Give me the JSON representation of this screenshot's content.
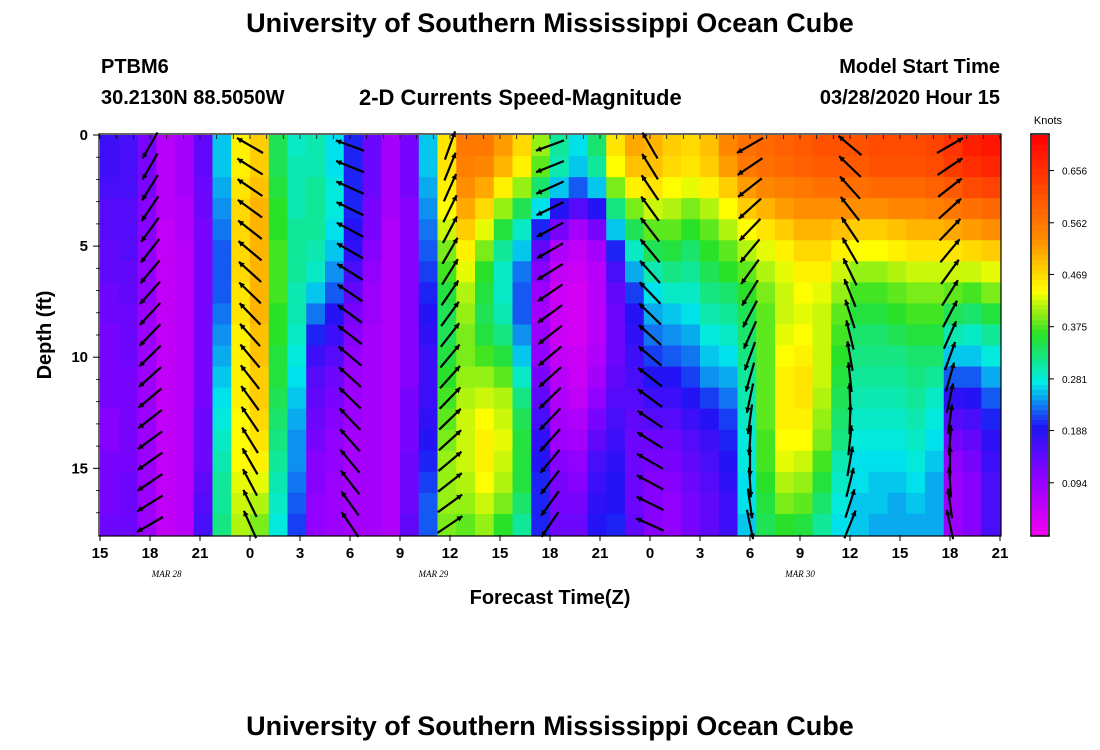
{
  "header": {
    "title": "University of Southern Mississippi Ocean Cube",
    "station": "PTBM6",
    "coords": "30.2130N 88.5050W",
    "plot_title": "2-D Currents Speed-Magnitude",
    "model_start_label": "Model Start Time",
    "model_start_value": "03/28/2020 Hour 15"
  },
  "footer": {
    "title": "University of Southern Mississippi Ocean Cube"
  },
  "chart_data": {
    "type": "heatmap",
    "title": "2-D Currents Speed-Magnitude",
    "xlabel": "Forecast Time(Z)",
    "ylabel": "Depth (ft)",
    "x_ticks": [
      "15",
      "18",
      "21",
      "0",
      "3",
      "6",
      "9",
      "12",
      "15",
      "18",
      "21",
      "0",
      "3",
      "6",
      "9",
      "12",
      "15",
      "18",
      "21"
    ],
    "date_labels": [
      {
        "label": "MAR  28",
        "hour_offset": 4
      },
      {
        "label": "MAR  29",
        "hour_offset": 20
      },
      {
        "label": "MAR  30",
        "hour_offset": 42
      }
    ],
    "y_ticks": [
      0,
      5,
      10,
      15
    ],
    "ylim": [
      0,
      18
    ],
    "xlim_hours": [
      0,
      54
    ],
    "colorbar": {
      "unit": "Knots",
      "ticks": [
        "0.656",
        "0.562",
        "0.469",
        "0.375",
        "0.281",
        "0.188",
        "0.094"
      ],
      "range": [
        0,
        0.72
      ]
    },
    "columns_speed_knots": [
      [
        0.17,
        0.17,
        0.16,
        0.15,
        0.15,
        0.14,
        0.14,
        0.13,
        0.13,
        0.12,
        0.12,
        0.12,
        0.12,
        0.11,
        0.11,
        0.12,
        0.12,
        0.12,
        0.13
      ],
      [
        0.16,
        0.16,
        0.16,
        0.15,
        0.15,
        0.15,
        0.14,
        0.14,
        0.13,
        0.13,
        0.13,
        0.12,
        0.12,
        0.12,
        0.12,
        0.12,
        0.13,
        0.13,
        0.13
      ],
      [
        0.12,
        0.12,
        0.12,
        0.11,
        0.11,
        0.1,
        0.1,
        0.1,
        0.09,
        0.09,
        0.09,
        0.09,
        0.09,
        0.09,
        0.09,
        0.09,
        0.09,
        0.09,
        0.09
      ],
      [
        0.06,
        0.06,
        0.06,
        0.06,
        0.05,
        0.05,
        0.05,
        0.05,
        0.05,
        0.05,
        0.05,
        0.05,
        0.05,
        0.05,
        0.05,
        0.05,
        0.05,
        0.05,
        0.05
      ],
      [
        0.08,
        0.08,
        0.08,
        0.07,
        0.07,
        0.06,
        0.06,
        0.06,
        0.06,
        0.06,
        0.06,
        0.06,
        0.06,
        0.06,
        0.06,
        0.06,
        0.06,
        0.06,
        0.06
      ],
      [
        0.14,
        0.14,
        0.13,
        0.13,
        0.12,
        0.12,
        0.12,
        0.12,
        0.12,
        0.12,
        0.12,
        0.12,
        0.12,
        0.13,
        0.13,
        0.13,
        0.14,
        0.15,
        0.16
      ],
      [
        0.26,
        0.26,
        0.25,
        0.24,
        0.23,
        0.22,
        0.22,
        0.22,
        0.23,
        0.24,
        0.25,
        0.26,
        0.27,
        0.28,
        0.29,
        0.3,
        0.31,
        0.31,
        0.32
      ],
      [
        0.45,
        0.45,
        0.46,
        0.47,
        0.47,
        0.47,
        0.47,
        0.46,
        0.46,
        0.45,
        0.45,
        0.45,
        0.45,
        0.44,
        0.44,
        0.44,
        0.43,
        0.42,
        0.41
      ],
      [
        0.48,
        0.48,
        0.49,
        0.5,
        0.5,
        0.5,
        0.5,
        0.5,
        0.5,
        0.49,
        0.49,
        0.48,
        0.48,
        0.47,
        0.46,
        0.45,
        0.43,
        0.41,
        0.39
      ],
      [
        0.34,
        0.34,
        0.35,
        0.36,
        0.36,
        0.37,
        0.37,
        0.37,
        0.36,
        0.36,
        0.35,
        0.35,
        0.34,
        0.33,
        0.32,
        0.31,
        0.3,
        0.29,
        0.28
      ],
      [
        0.29,
        0.3,
        0.3,
        0.3,
        0.31,
        0.31,
        0.31,
        0.3,
        0.3,
        0.29,
        0.28,
        0.27,
        0.26,
        0.25,
        0.24,
        0.24,
        0.23,
        0.22,
        0.21
      ],
      [
        0.3,
        0.3,
        0.31,
        0.31,
        0.31,
        0.3,
        0.29,
        0.26,
        0.23,
        0.2,
        0.17,
        0.15,
        0.14,
        0.13,
        0.12,
        0.11,
        0.11,
        0.1,
        0.1
      ],
      [
        0.27,
        0.27,
        0.28,
        0.28,
        0.27,
        0.26,
        0.24,
        0.22,
        0.19,
        0.17,
        0.15,
        0.13,
        0.12,
        0.11,
        0.1,
        0.1,
        0.09,
        0.09,
        0.09
      ],
      [
        0.2,
        0.2,
        0.2,
        0.2,
        0.19,
        0.18,
        0.16,
        0.14,
        0.12,
        0.11,
        0.1,
        0.09,
        0.09,
        0.09,
        0.08,
        0.08,
        0.08,
        0.08,
        0.08
      ],
      [
        0.13,
        0.13,
        0.13,
        0.12,
        0.12,
        0.11,
        0.1,
        0.09,
        0.09,
        0.08,
        0.08,
        0.08,
        0.08,
        0.08,
        0.08,
        0.08,
        0.08,
        0.08,
        0.08
      ],
      [
        0.08,
        0.08,
        0.08,
        0.08,
        0.07,
        0.07,
        0.07,
        0.07,
        0.07,
        0.07,
        0.07,
        0.07,
        0.07,
        0.07,
        0.07,
        0.07,
        0.07,
        0.07,
        0.07
      ],
      [
        0.12,
        0.12,
        0.12,
        0.11,
        0.11,
        0.11,
        0.11,
        0.11,
        0.11,
        0.11,
        0.11,
        0.11,
        0.12,
        0.12,
        0.12,
        0.13,
        0.13,
        0.13,
        0.14
      ],
      [
        0.26,
        0.26,
        0.25,
        0.24,
        0.23,
        0.22,
        0.21,
        0.2,
        0.19,
        0.18,
        0.17,
        0.17,
        0.17,
        0.18,
        0.19,
        0.2,
        0.21,
        0.22,
        0.22
      ],
      [
        0.46,
        0.46,
        0.45,
        0.44,
        0.42,
        0.39,
        0.37,
        0.35,
        0.34,
        0.34,
        0.35,
        0.36,
        0.37,
        0.38,
        0.39,
        0.4,
        0.4,
        0.4,
        0.39
      ],
      [
        0.56,
        0.55,
        0.53,
        0.51,
        0.48,
        0.45,
        0.43,
        0.41,
        0.4,
        0.39,
        0.39,
        0.4,
        0.41,
        0.42,
        0.42,
        0.42,
        0.41,
        0.4,
        0.38
      ],
      [
        0.56,
        0.54,
        0.51,
        0.47,
        0.43,
        0.39,
        0.36,
        0.35,
        0.34,
        0.35,
        0.37,
        0.4,
        0.42,
        0.44,
        0.45,
        0.45,
        0.44,
        0.42,
        0.4
      ],
      [
        0.52,
        0.5,
        0.45,
        0.4,
        0.35,
        0.31,
        0.29,
        0.29,
        0.3,
        0.32,
        0.35,
        0.38,
        0.41,
        0.42,
        0.43,
        0.42,
        0.41,
        0.39,
        0.36
      ],
      [
        0.47,
        0.45,
        0.4,
        0.34,
        0.29,
        0.26,
        0.23,
        0.22,
        0.22,
        0.24,
        0.26,
        0.29,
        0.32,
        0.34,
        0.35,
        0.35,
        0.35,
        0.33,
        0.31
      ],
      [
        0.4,
        0.38,
        0.33,
        0.27,
        0.2,
        0.14,
        0.11,
        0.09,
        0.08,
        0.09,
        0.1,
        0.12,
        0.14,
        0.16,
        0.18,
        0.19,
        0.2,
        0.2,
        0.2
      ],
      [
        0.31,
        0.3,
        0.26,
        0.19,
        0.12,
        0.07,
        0.05,
        0.04,
        0.04,
        0.04,
        0.05,
        0.06,
        0.07,
        0.08,
        0.09,
        0.11,
        0.12,
        0.12,
        0.13
      ],
      [
        0.27,
        0.26,
        0.22,
        0.15,
        0.08,
        0.05,
        0.04,
        0.03,
        0.03,
        0.03,
        0.04,
        0.04,
        0.05,
        0.07,
        0.08,
        0.1,
        0.11,
        0.12,
        0.13
      ],
      [
        0.33,
        0.31,
        0.26,
        0.19,
        0.12,
        0.08,
        0.06,
        0.06,
        0.06,
        0.06,
        0.07,
        0.08,
        0.1,
        0.12,
        0.14,
        0.16,
        0.17,
        0.18,
        0.19
      ],
      [
        0.46,
        0.44,
        0.39,
        0.32,
        0.26,
        0.2,
        0.16,
        0.14,
        0.13,
        0.13,
        0.13,
        0.14,
        0.15,
        0.16,
        0.17,
        0.18,
        0.19,
        0.19,
        0.2
      ],
      [
        0.51,
        0.49,
        0.45,
        0.39,
        0.34,
        0.29,
        0.25,
        0.21,
        0.19,
        0.18,
        0.17,
        0.16,
        0.15,
        0.14,
        0.13,
        0.13,
        0.13,
        0.13,
        0.14
      ],
      [
        0.5,
        0.49,
        0.46,
        0.42,
        0.38,
        0.34,
        0.3,
        0.27,
        0.25,
        0.23,
        0.21,
        0.19,
        0.17,
        0.15,
        0.13,
        0.12,
        0.11,
        0.11,
        0.11
      ],
      [
        0.48,
        0.47,
        0.44,
        0.41,
        0.38,
        0.35,
        0.32,
        0.29,
        0.26,
        0.24,
        0.22,
        0.19,
        0.17,
        0.15,
        0.13,
        0.12,
        0.11,
        0.1,
        0.1
      ],
      [
        0.47,
        0.46,
        0.43,
        0.39,
        0.36,
        0.33,
        0.31,
        0.29,
        0.27,
        0.25,
        0.23,
        0.21,
        0.19,
        0.17,
        0.15,
        0.14,
        0.13,
        0.12,
        0.12
      ],
      [
        0.49,
        0.48,
        0.45,
        0.41,
        0.38,
        0.36,
        0.34,
        0.32,
        0.3,
        0.28,
        0.26,
        0.24,
        0.21,
        0.19,
        0.17,
        0.16,
        0.15,
        0.14,
        0.14
      ],
      [
        0.54,
        0.52,
        0.48,
        0.44,
        0.41,
        0.38,
        0.36,
        0.33,
        0.31,
        0.29,
        0.27,
        0.25,
        0.23,
        0.21,
        0.2,
        0.19,
        0.18,
        0.17,
        0.17
      ],
      [
        0.57,
        0.56,
        0.52,
        0.48,
        0.44,
        0.41,
        0.38,
        0.36,
        0.34,
        0.33,
        0.32,
        0.31,
        0.3,
        0.29,
        0.28,
        0.28,
        0.27,
        0.27,
        0.26
      ],
      [
        0.58,
        0.57,
        0.54,
        0.5,
        0.46,
        0.43,
        0.41,
        0.39,
        0.38,
        0.38,
        0.38,
        0.38,
        0.38,
        0.38,
        0.37,
        0.37,
        0.36,
        0.35,
        0.34
      ],
      [
        0.59,
        0.58,
        0.55,
        0.52,
        0.48,
        0.45,
        0.43,
        0.42,
        0.42,
        0.43,
        0.44,
        0.45,
        0.45,
        0.45,
        0.44,
        0.43,
        0.41,
        0.39,
        0.36
      ],
      [
        0.6,
        0.59,
        0.56,
        0.53,
        0.5,
        0.47,
        0.45,
        0.44,
        0.43,
        0.44,
        0.45,
        0.46,
        0.46,
        0.45,
        0.44,
        0.42,
        0.4,
        0.38,
        0.35
      ],
      [
        0.61,
        0.6,
        0.57,
        0.53,
        0.5,
        0.47,
        0.45,
        0.43,
        0.42,
        0.42,
        0.42,
        0.42,
        0.41,
        0.4,
        0.39,
        0.37,
        0.35,
        0.33,
        0.31
      ],
      [
        0.61,
        0.6,
        0.57,
        0.53,
        0.49,
        0.45,
        0.42,
        0.4,
        0.38,
        0.37,
        0.36,
        0.35,
        0.34,
        0.33,
        0.32,
        0.3,
        0.29,
        0.28,
        0.27
      ],
      [
        0.61,
        0.6,
        0.57,
        0.53,
        0.48,
        0.44,
        0.4,
        0.37,
        0.35,
        0.33,
        0.32,
        0.31,
        0.3,
        0.29,
        0.28,
        0.27,
        0.27,
        0.26,
        0.26
      ],
      [
        0.62,
        0.61,
        0.58,
        0.53,
        0.48,
        0.44,
        0.4,
        0.37,
        0.35,
        0.33,
        0.32,
        0.31,
        0.3,
        0.29,
        0.28,
        0.27,
        0.26,
        0.26,
        0.25
      ],
      [
        0.62,
        0.61,
        0.58,
        0.54,
        0.49,
        0.45,
        0.41,
        0.38,
        0.36,
        0.34,
        0.32,
        0.31,
        0.3,
        0.29,
        0.28,
        0.27,
        0.26,
        0.25,
        0.25
      ],
      [
        0.62,
        0.61,
        0.58,
        0.54,
        0.5,
        0.46,
        0.42,
        0.39,
        0.37,
        0.35,
        0.33,
        0.32,
        0.31,
        0.3,
        0.29,
        0.28,
        0.27,
        0.26,
        0.25
      ],
      [
        0.63,
        0.62,
        0.59,
        0.55,
        0.5,
        0.46,
        0.42,
        0.39,
        0.37,
        0.35,
        0.33,
        0.31,
        0.29,
        0.28,
        0.27,
        0.26,
        0.25,
        0.25,
        0.25
      ],
      [
        0.65,
        0.64,
        0.6,
        0.56,
        0.51,
        0.46,
        0.42,
        0.38,
        0.34,
        0.3,
        0.26,
        0.22,
        0.18,
        0.15,
        0.12,
        0.1,
        0.09,
        0.09,
        0.09
      ],
      [
        0.68,
        0.66,
        0.62,
        0.57,
        0.52,
        0.47,
        0.42,
        0.37,
        0.33,
        0.29,
        0.26,
        0.22,
        0.19,
        0.16,
        0.14,
        0.12,
        0.11,
        0.11,
        0.11
      ],
      [
        0.69,
        0.67,
        0.63,
        0.58,
        0.53,
        0.48,
        0.43,
        0.39,
        0.35,
        0.31,
        0.28,
        0.25,
        0.22,
        0.2,
        0.18,
        0.17,
        0.16,
        0.16,
        0.16
      ]
    ],
    "vector_columns_deg": [
      [
        210,
        210,
        212,
        214,
        216,
        218,
        220,
        222,
        223,
        224,
        226,
        228,
        230,
        232,
        234,
        235,
        236,
        238,
        240
      ],
      [
        300,
        302,
        304,
        306,
        308,
        310,
        312,
        314,
        316,
        318,
        320,
        322,
        324,
        326,
        328,
        330,
        332,
        334,
        336
      ],
      [
        290,
        292,
        294,
        296,
        298,
        300,
        302,
        304,
        306,
        308,
        310,
        312,
        314,
        316,
        318,
        320,
        322,
        324,
        326
      ],
      [
        20,
        22,
        24,
        26,
        28,
        30,
        32,
        34,
        36,
        38,
        40,
        42,
        44,
        46,
        48,
        50,
        52,
        54,
        56
      ],
      [
        250,
        248,
        246,
        244,
        242,
        240,
        238,
        236,
        234,
        232,
        230,
        228,
        226,
        224,
        222,
        220,
        218,
        216,
        214
      ],
      [
        330,
        328,
        326,
        324,
        322,
        320,
        318,
        316,
        314,
        312,
        310,
        308,
        306,
        304,
        302,
        300,
        298,
        296,
        294
      ],
      [
        240,
        236,
        232,
        228,
        224,
        220,
        216,
        212,
        208,
        204,
        200,
        196,
        192,
        188,
        184,
        180,
        176,
        172,
        168
      ],
      [
        310,
        314,
        318,
        322,
        326,
        330,
        334,
        338,
        342,
        346,
        350,
        354,
        358,
        2,
        6,
        10,
        14,
        18,
        22
      ],
      [
        60,
        56,
        52,
        48,
        44,
        40,
        36,
        32,
        28,
        24,
        20,
        16,
        12,
        8,
        4,
        0,
        356,
        352,
        348
      ]
    ]
  }
}
